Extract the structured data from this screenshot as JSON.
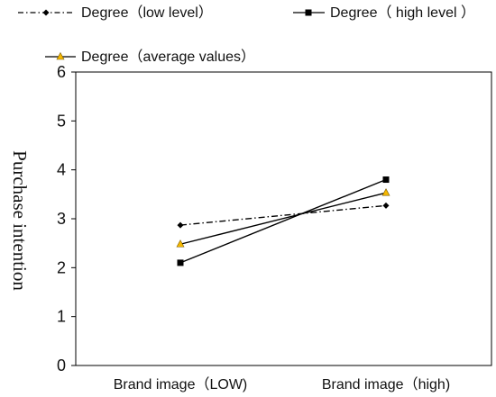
{
  "chart_data": {
    "type": "line",
    "categories": [
      "Brand image（LOW)",
      "Brand image（high)"
    ],
    "ylabel": "Purchase intention",
    "xlabel": "",
    "ylim": [
      0,
      6
    ],
    "yticks": [
      "0",
      "1",
      "2",
      "3",
      "4",
      "5",
      "6"
    ],
    "legend_position": "top",
    "grid": false,
    "series": [
      {
        "name": "Degree（low level）",
        "values": [
          2.87,
          3.27
        ],
        "color": "#000000",
        "marker": "diamond",
        "dash": "dash-dot"
      },
      {
        "name": "Degree（ high level ）",
        "values": [
          2.1,
          3.8
        ],
        "color": "#000000",
        "marker": "square",
        "dash": "solid"
      },
      {
        "name": "Degree（average values）",
        "values": [
          2.48,
          3.53
        ],
        "color": "#000000",
        "marker": "triangle",
        "marker_color": "#f5b800",
        "dash": "solid"
      }
    ]
  }
}
